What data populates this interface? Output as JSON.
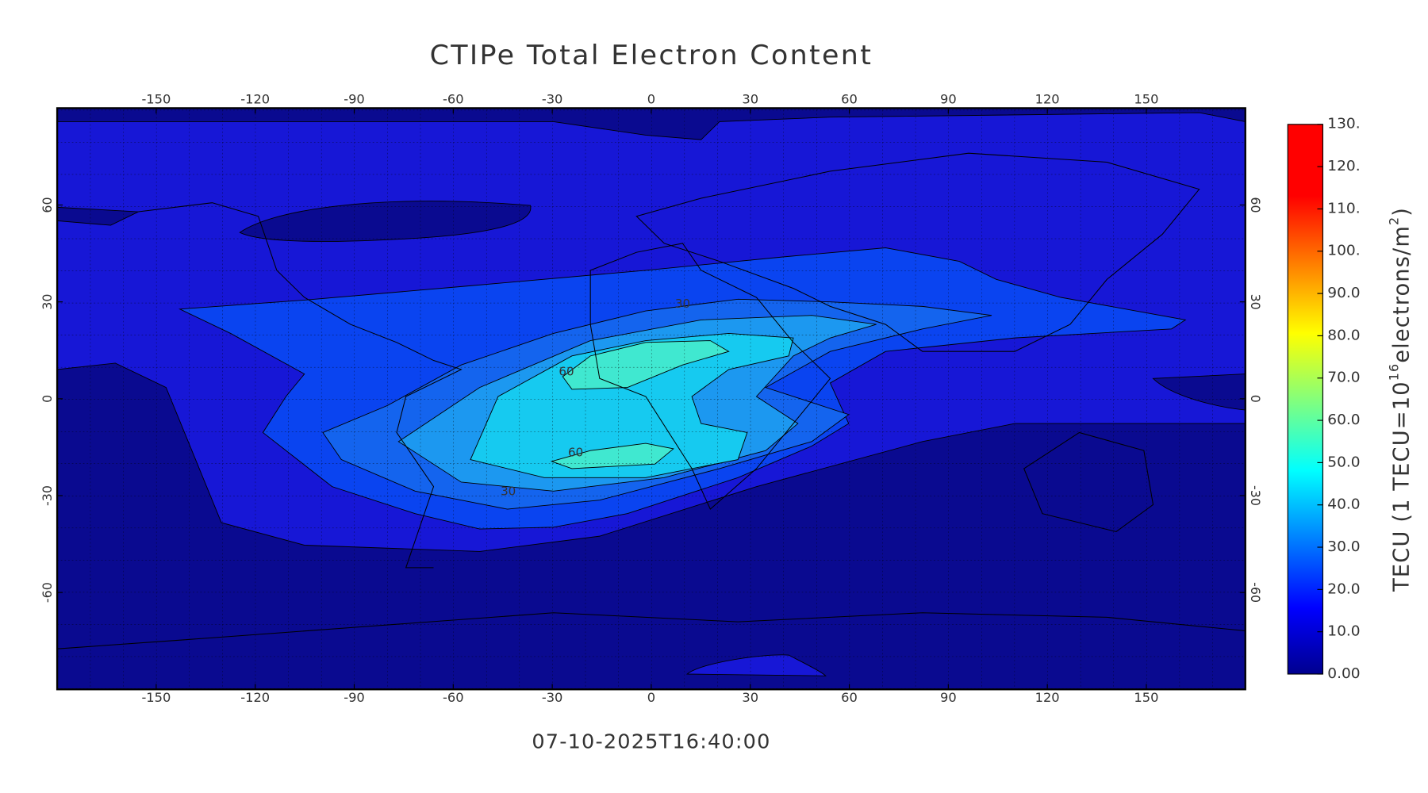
{
  "chart_data": {
    "type": "contour",
    "title": "CTIPe Total Electron Content",
    "subtitle": "07-10-2025T16:40:00",
    "xlim": [
      -180,
      180
    ],
    "ylim": [
      -90,
      90
    ],
    "xticks": [
      -150,
      -120,
      -90,
      -60,
      -30,
      0,
      30,
      60,
      90,
      120,
      150
    ],
    "yticks": [
      -60,
      -30,
      0,
      30,
      60
    ],
    "contour_labels": [
      30,
      60,
      60,
      30
    ],
    "colorbar": {
      "lim": [
        0,
        130
      ],
      "ticks": [
        {
          "value": 0,
          "label": "0.00"
        },
        {
          "value": 10,
          "label": "10.0"
        },
        {
          "value": 20,
          "label": "20.0"
        },
        {
          "value": 30,
          "label": "30.0"
        },
        {
          "value": 40,
          "label": "40.0"
        },
        {
          "value": 50,
          "label": "50.0"
        },
        {
          "value": 60,
          "label": "60.0"
        },
        {
          "value": 70,
          "label": "70.0"
        },
        {
          "value": 80,
          "label": "80.0"
        },
        {
          "value": 90,
          "label": "90.0"
        },
        {
          "value": 100,
          "label": "100."
        },
        {
          "value": 110,
          "label": "110."
        },
        {
          "value": 120,
          "label": "120."
        },
        {
          "value": 130,
          "label": "130."
        }
      ],
      "label_parts": [
        "TECU (1 TECU=10",
        "16",
        "electrons/m",
        "2",
        ")"
      ]
    }
  }
}
